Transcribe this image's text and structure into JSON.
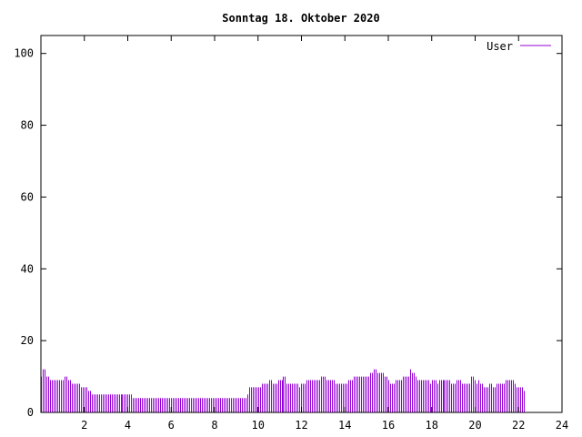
{
  "chart_data": {
    "type": "bar",
    "title": "Sonntag 18. Oktober 2020",
    "xlabel": "",
    "ylabel": "",
    "xlim": [
      0,
      24
    ],
    "ylim": [
      0,
      105
    ],
    "x_ticks": [
      "2",
      "4",
      "6",
      "8",
      "10",
      "12",
      "14",
      "16",
      "18",
      "20",
      "22",
      "24"
    ],
    "y_ticks": [
      "0",
      "20",
      "40",
      "60",
      "80",
      "100"
    ],
    "legend": {
      "position": "top-right",
      "entries": [
        "User"
      ]
    },
    "grid": false,
    "colors": {
      "series": "#9400d3",
      "axis": "#000000"
    },
    "x_step_hours": 0.0833,
    "series": [
      {
        "name": "User",
        "values": [
          10,
          12,
          12,
          10,
          10,
          9,
          9,
          9,
          9,
          9,
          9,
          9,
          9,
          10,
          10,
          9,
          9,
          8,
          8,
          8,
          8,
          8,
          7,
          7,
          7,
          7,
          6,
          6,
          5,
          5,
          5,
          5,
          5,
          5,
          5,
          5,
          5,
          5,
          5,
          5,
          5,
          5,
          5,
          5,
          5,
          5,
          5,
          5,
          5,
          5,
          5,
          4,
          4,
          4,
          4,
          4,
          4,
          4,
          4,
          4,
          4,
          4,
          4,
          4,
          4,
          4,
          4,
          4,
          4,
          4,
          4,
          4,
          4,
          4,
          4,
          4,
          4,
          4,
          4,
          4,
          4,
          4,
          4,
          4,
          4,
          4,
          4,
          4,
          4,
          4,
          4,
          4,
          4,
          4,
          4,
          4,
          4,
          4,
          4,
          4,
          4,
          4,
          4,
          4,
          4,
          4,
          4,
          4,
          4,
          4,
          4,
          4,
          4,
          4,
          5,
          7,
          7,
          7,
          7,
          7,
          7,
          7,
          8,
          8,
          8,
          8,
          9,
          9,
          8,
          8,
          8,
          9,
          9,
          9,
          10,
          10,
          8,
          8,
          8,
          8,
          8,
          8,
          8,
          7,
          8,
          8,
          8,
          9,
          9,
          9,
          9,
          9,
          9,
          9,
          9,
          10,
          10,
          10,
          9,
          9,
          9,
          9,
          9,
          8,
          8,
          8,
          8,
          8,
          8,
          8,
          9,
          9,
          9,
          10,
          10,
          10,
          10,
          10,
          10,
          10,
          10,
          10,
          11,
          11,
          12,
          12,
          11,
          11,
          11,
          11,
          10,
          10,
          9,
          8,
          8,
          8,
          9,
          9,
          9,
          9,
          10,
          10,
          10,
          10,
          12,
          11,
          11,
          10,
          9,
          9,
          9,
          9,
          9,
          9,
          9,
          8,
          9,
          9,
          9,
          8,
          9,
          9,
          9,
          9,
          9,
          9,
          9,
          8,
          8,
          8,
          9,
          9,
          9,
          8,
          8,
          8,
          8,
          8,
          10,
          10,
          9,
          8,
          9,
          8,
          8,
          7,
          7,
          7,
          8,
          8,
          7,
          7,
          8,
          8,
          8,
          8,
          8,
          9,
          9,
          9,
          9,
          9,
          8,
          7,
          7,
          7,
          7,
          6
        ]
      }
    ]
  }
}
